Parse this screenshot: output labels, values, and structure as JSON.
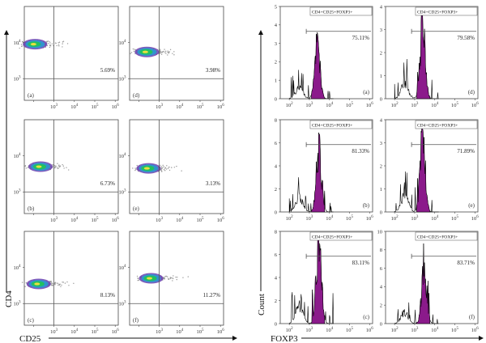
{
  "figure": {
    "cd4_axis_label": "CD4",
    "cd25_axis_label": "CD25",
    "count_axis_label": "Count",
    "foxp3_axis_label": "FOXP3",
    "population_label": "CD4+CD25+FOXP3+"
  },
  "chart_data": [
    {
      "type": "scatter",
      "description_labels": "flow cytometry dot plots, CD25 (x) vs CD4 (y), log scale",
      "x_axis": {
        "label": "CD25",
        "scale": "log",
        "ticks": [
          "10^2",
          "10^3",
          "10^4",
          "10^5",
          "10^6"
        ]
      },
      "y_axis": {
        "label": "CD4",
        "scale": "log",
        "ticks": [
          "10^3",
          "10^4"
        ]
      },
      "panels": [
        {
          "id": "(a)",
          "gate_percent": "5.69%",
          "cluster_center": {
            "cd25": 120,
            "cd4": 9000
          }
        },
        {
          "id": "(d)",
          "gate_percent": "3.98%",
          "cluster_center": {
            "cd25": 250,
            "cd4": 5500
          }
        },
        {
          "id": "(b)",
          "gate_percent": "6.73%",
          "cluster_center": {
            "cd25": 220,
            "cd4": 5000
          }
        },
        {
          "id": "(e)",
          "gate_percent": "3.13%",
          "cluster_center": {
            "cd25": 300,
            "cd4": 4500
          }
        },
        {
          "id": "(c)",
          "gate_percent": "8.13%",
          "cluster_center": {
            "cd25": 180,
            "cd4": 3500
          }
        },
        {
          "id": "(f)",
          "gate_percent": "11.27%",
          "cluster_center": {
            "cd25": 400,
            "cd4": 5000
          }
        }
      ]
    },
    {
      "type": "bar",
      "description_labels": "FOXP3 histograms gated on CD4+CD25+, log x axis",
      "x_axis": {
        "label": "FOXP3",
        "scale": "log",
        "ticks": [
          "10^2",
          "10^3",
          "10^4",
          "10^5",
          "10^6"
        ]
      },
      "y_axis": {
        "label": "Count"
      },
      "panels": [
        {
          "id": "(a)",
          "gate_percent": "75.11%",
          "ylim": [
            0,
            5
          ],
          "yticks": [
            0,
            1,
            2,
            3,
            4,
            5
          ],
          "peak_count": 3.4,
          "peak_foxp3": 2500
        },
        {
          "id": "(d)",
          "gate_percent": "79.58%",
          "ylim": [
            0,
            4
          ],
          "yticks": [
            0,
            1,
            2,
            3,
            4
          ],
          "peak_count": 3.5,
          "peak_foxp3": 2500
        },
        {
          "id": "(b)",
          "gate_percent": "81.33%",
          "ylim": [
            0,
            8
          ],
          "yticks": [
            0,
            2,
            4,
            6,
            8
          ],
          "peak_count": 6.2,
          "peak_foxp3": 3000
        },
        {
          "id": "(e)",
          "gate_percent": "71.89%",
          "ylim": [
            0,
            4
          ],
          "yticks": [
            0,
            1,
            2,
            3,
            4
          ],
          "peak_count": 3.7,
          "peak_foxp3": 2500
        },
        {
          "id": "(c)",
          "gate_percent": "83.11%",
          "ylim": [
            0,
            8
          ],
          "yticks": [
            0,
            2,
            4,
            6,
            8
          ],
          "peak_count": 7.8,
          "peak_foxp3": 3000
        },
        {
          "id": "(f)",
          "gate_percent": "83.71%",
          "ylim": [
            0,
            10
          ],
          "yticks": [
            0,
            2,
            4,
            6,
            8,
            10
          ],
          "peak_count": 6.3,
          "peak_foxp3": 3000
        }
      ]
    }
  ],
  "colors": {
    "axis": "#4a4a4a",
    "gate": "#555555",
    "hist_fill": "#8b1a8b",
    "hist_edge": "#000000",
    "dot_core": "#22c060",
    "dot_mid": "#2a9ad0",
    "dot_outer": "#6a3fb0",
    "dot_scatter": "#9a9a9a"
  }
}
